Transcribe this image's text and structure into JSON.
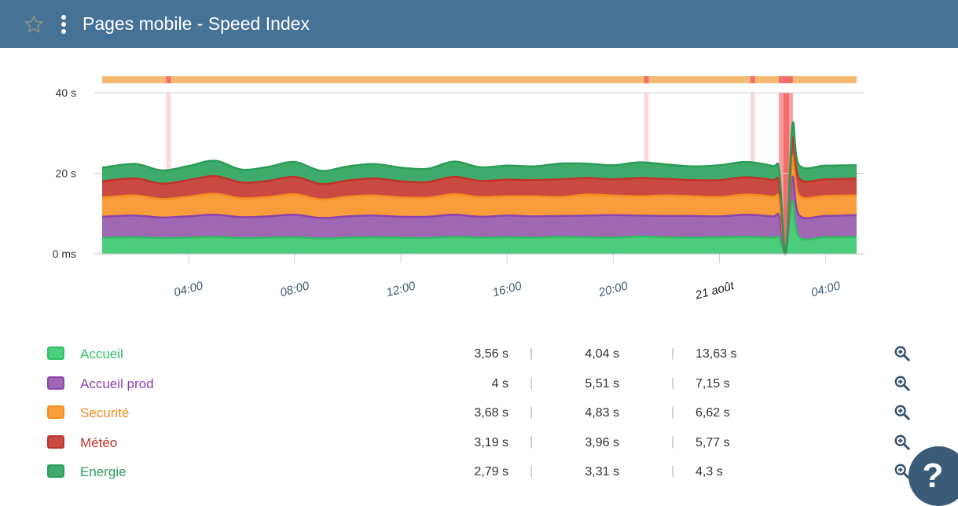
{
  "header": {
    "title": "Pages mobile - Speed Index",
    "icons": [
      "star-icon",
      "more-vertical-icon"
    ]
  },
  "chart_data": {
    "type": "area",
    "stacked": true,
    "y_ticks": [
      "0 ms",
      "20 s",
      "40 s"
    ],
    "ylim": [
      0,
      40
    ],
    "x_ticks": [
      {
        "t": "20 août 04:00",
        "label": "04:00"
      },
      {
        "t": "20 août 08:00",
        "label": "08:00"
      },
      {
        "t": "20 août 12:00",
        "label": "12:00"
      },
      {
        "t": "20 août 16:00",
        "label": "16:00"
      },
      {
        "t": "20 août 20:00",
        "label": "20:00"
      },
      {
        "t": "21 août 00:00",
        "label": "21 août"
      },
      {
        "t": "21 août 04:00",
        "label": "04:00"
      }
    ],
    "xlim": [
      "20 août 00:45",
      "21 août 05:10"
    ],
    "x": [
      "20 août 00:45",
      "20 août 02:00",
      "20 août 03:00",
      "20 août 04:00",
      "20 août 05:00",
      "20 août 06:00",
      "20 août 07:00",
      "20 août 08:00",
      "20 août 09:00",
      "20 août 10:00",
      "20 août 11:00",
      "20 août 12:00",
      "20 août 13:00",
      "20 août 14:00",
      "20 août 15:00",
      "20 août 16:00",
      "20 août 17:00",
      "20 août 18:00",
      "20 août 19:00",
      "20 août 20:00",
      "20 août 21:00",
      "20 août 22:00",
      "20 août 23:00",
      "21 août 00:00",
      "21 août 01:00",
      "21 août 02:00",
      "21 août 02:15",
      "21 août 02:30",
      "21 août 02:45",
      "21 août 03:00",
      "21 août 04:00",
      "21 août 05:10"
    ],
    "series": [
      {
        "name": "Accueil",
        "color": "#4ccd7e",
        "line": "#2fbf63",
        "values": [
          4,
          4.1,
          3.9,
          4,
          4.2,
          3.9,
          4,
          4.1,
          3.8,
          4,
          4.1,
          4,
          3.9,
          4.2,
          4,
          4.1,
          4,
          4.2,
          4.1,
          4,
          4.3,
          4.1,
          4,
          4.1,
          4.2,
          4,
          4.1,
          0.2,
          13,
          4.2,
          4.1,
          4.2
        ],
        "stats": [
          "3,56 s",
          "4,04 s",
          "13,63 s"
        ]
      },
      {
        "name": "Accueil prod",
        "color": "#a068b4",
        "line": "#8e44ad",
        "values": [
          5.2,
          5.4,
          5.1,
          5.3,
          5.5,
          5.2,
          5.3,
          5.6,
          5.1,
          5.3,
          5.4,
          5.2,
          5.3,
          5.5,
          5.2,
          5.4,
          5.3,
          5.2,
          5.4,
          5.6,
          5.2,
          5.3,
          5.4,
          5.2,
          5.5,
          5.3,
          5.2,
          0.1,
          6,
          5.4,
          5.3,
          5.4
        ],
        "stats": [
          "4 s",
          "5,51 s",
          "7,15 s"
        ]
      },
      {
        "name": "Securité",
        "color": "#f89c3c",
        "line": "#f28c1e",
        "values": [
          4.8,
          5,
          4.6,
          4.9,
          5.2,
          4.7,
          4.8,
          5.1,
          4.6,
          4.9,
          5,
          4.8,
          4.7,
          5.1,
          4.9,
          4.8,
          5,
          4.7,
          5.2,
          4.9,
          4.8,
          5.1,
          4.9,
          4.8,
          5,
          4.9,
          4.3,
          0.2,
          5,
          4.9,
          5,
          4.9
        ],
        "stats": [
          "3,68 s",
          "4,83 s",
          "6,62 s"
        ]
      },
      {
        "name": "Météo",
        "color": "#c94a43",
        "line": "#c0332b",
        "values": [
          4,
          4.2,
          3.8,
          4.1,
          4.4,
          3.9,
          4,
          4.3,
          3.8,
          4,
          4.2,
          4,
          3.9,
          4.3,
          4,
          4.1,
          4,
          4.4,
          4.1,
          4,
          4.5,
          4.1,
          4,
          4.2,
          4.3,
          4.1,
          3.8,
          0,
          4.5,
          4.2,
          4.1,
          4.2
        ],
        "stats": [
          "3,19 s",
          "3,96 s",
          "5,77 s"
        ]
      },
      {
        "name": "Energie",
        "color": "#3fab6a",
        "line": "#2a9d57",
        "values": [
          3.4,
          3.6,
          3.3,
          3.5,
          3.8,
          3.2,
          3.5,
          3.7,
          3.3,
          3.5,
          3.6,
          3.4,
          3.3,
          3.8,
          3.4,
          3.5,
          3.4,
          3.9,
          3.6,
          3.5,
          3.9,
          3.6,
          3.4,
          3.7,
          3.8,
          3.5,
          3.2,
          0,
          3.5,
          3.3,
          3.4,
          3.3
        ],
        "stats": [
          "2,79 s",
          "3,31 s",
          "4,3 s"
        ]
      }
    ],
    "alerts": [
      {
        "from": "20 août 03:10",
        "to": "20 août 03:20"
      },
      {
        "from": "20 août 21:10",
        "to": "20 août 21:20"
      },
      {
        "from": "21 août 01:10",
        "to": "21 août 01:20"
      },
      {
        "from": "21 août 02:14",
        "to": "21 août 02:46"
      }
    ],
    "alert_bar_color": "#f5b971",
    "alert_color": "#f46d6d"
  },
  "help_label": "?"
}
